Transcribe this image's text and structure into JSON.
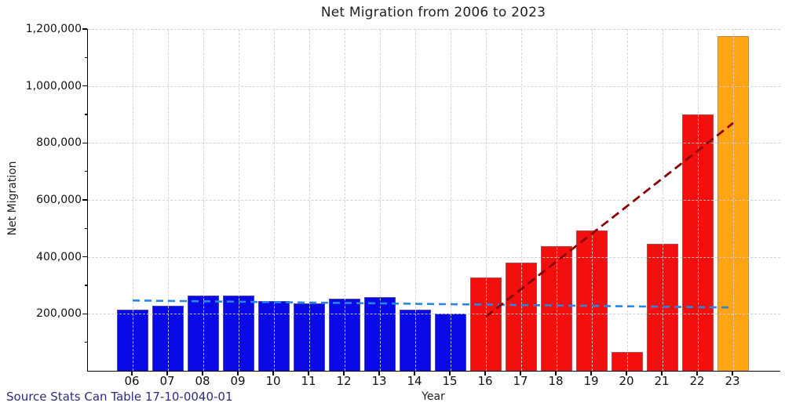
{
  "chart_data": {
    "type": "bar",
    "title": "Net Migration from 2006 to 2023",
    "xlabel": "Year",
    "ylabel": "Net Migration",
    "source_note": "Source Stats Can Table 17-10-0040-01",
    "source_note_color": "#2d2d7f",
    "ylim": [
      0,
      1200000
    ],
    "grid": "dashed",
    "legend": "none",
    "yticks": [
      {
        "value": 200000,
        "label": "200,000"
      },
      {
        "value": 400000,
        "label": "400,000"
      },
      {
        "value": 600000,
        "label": "600,000"
      },
      {
        "value": 800000,
        "label": "800,000"
      },
      {
        "value": 1000000,
        "label": "1,000,000"
      },
      {
        "value": 1200000,
        "label": "1,200,000"
      }
    ],
    "minor_ytick_step": 100000,
    "bars": [
      {
        "year": "06",
        "value": 215000,
        "color": "#0a0ae6"
      },
      {
        "year": "07",
        "value": 228000,
        "color": "#0a0ae6"
      },
      {
        "year": "08",
        "value": 265000,
        "color": "#0a0ae6"
      },
      {
        "year": "09",
        "value": 263000,
        "color": "#0a0ae6"
      },
      {
        "year": "10",
        "value": 245000,
        "color": "#0a0ae6"
      },
      {
        "year": "11",
        "value": 237000,
        "color": "#0a0ae6"
      },
      {
        "year": "12",
        "value": 253000,
        "color": "#0a0ae6"
      },
      {
        "year": "13",
        "value": 260000,
        "color": "#0a0ae6"
      },
      {
        "year": "14",
        "value": 216000,
        "color": "#0a0ae6"
      },
      {
        "year": "15",
        "value": 201000,
        "color": "#0a0ae6"
      },
      {
        "year": "16",
        "value": 328000,
        "color": "#f40f0f"
      },
      {
        "year": "17",
        "value": 379000,
        "color": "#f40f0f"
      },
      {
        "year": "18",
        "value": 437000,
        "color": "#f40f0f"
      },
      {
        "year": "19",
        "value": 494000,
        "color": "#f40f0f"
      },
      {
        "year": "20",
        "value": 65000,
        "color": "#f40f0f"
      },
      {
        "year": "21",
        "value": 446000,
        "color": "#f40f0f"
      },
      {
        "year": "22",
        "value": 901000,
        "color": "#f40f0f"
      },
      {
        "year": "23",
        "value": 1175000,
        "color": "#ffa513"
      }
    ],
    "trendlines": [
      {
        "name": "historic-average-trend",
        "color": "#2a85e0",
        "width": 2.6,
        "dash": "9 6",
        "points": [
          {
            "year": "06",
            "value": 247000
          },
          {
            "year": "23",
            "value": 222000
          }
        ]
      },
      {
        "name": "recent-growth-trend",
        "color": "#8b0000",
        "width": 2.8,
        "dash": "11 6",
        "points": [
          {
            "year": "16",
            "value": 190000
          },
          {
            "year": "23",
            "value": 870000
          }
        ]
      }
    ]
  }
}
